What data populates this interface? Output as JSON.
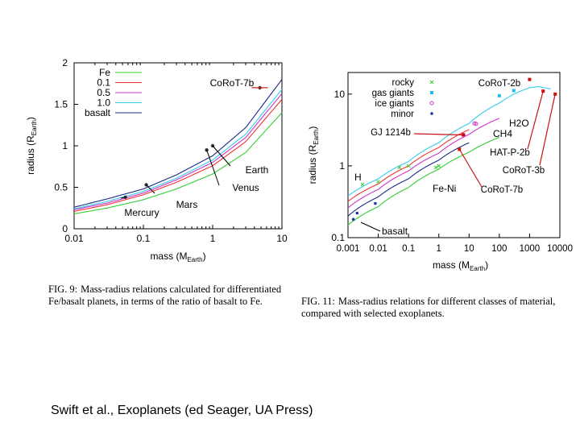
{
  "charts": [
    {
      "id": "fig9",
      "type": "line",
      "xscale": "log",
      "yscale": "linear",
      "xlim": [
        0.01,
        10
      ],
      "ylim": [
        0,
        2
      ],
      "xticks": [
        "0.01",
        "0.1",
        "1",
        "10"
      ],
      "yticks": [
        "0",
        "0.5",
        "1",
        "1.5",
        "2"
      ],
      "xlabel": "mass (M",
      "xlabel_sub": "Earth",
      "ylabel": "radius (R",
      "ylabel_sub": "Earth",
      "legend_placement": "top-left",
      "series": [
        {
          "name": "Fe",
          "color": "#33cc33",
          "x": [
            0.01,
            0.03,
            0.1,
            0.3,
            1,
            3,
            10
          ],
          "y": [
            0.18,
            0.25,
            0.35,
            0.48,
            0.66,
            0.92,
            1.4
          ]
        },
        {
          "name": "0.1",
          "color": "#ee3333",
          "x": [
            0.01,
            0.03,
            0.1,
            0.3,
            1,
            3,
            10
          ],
          "y": [
            0.21,
            0.29,
            0.41,
            0.56,
            0.76,
            1.05,
            1.56
          ]
        },
        {
          "name": "0.5",
          "color": "#cc33cc",
          "x": [
            0.01,
            0.03,
            0.1,
            0.3,
            1,
            3,
            10
          ],
          "y": [
            0.23,
            0.31,
            0.43,
            0.59,
            0.8,
            1.1,
            1.63
          ]
        },
        {
          "name": "1.0",
          "color": "#33ccee",
          "x": [
            0.01,
            0.03,
            0.1,
            0.3,
            1,
            3,
            10
          ],
          "y": [
            0.24,
            0.33,
            0.45,
            0.61,
            0.83,
            1.14,
            1.68
          ]
        },
        {
          "name": "basalt",
          "color": "#1a2a8a",
          "x": [
            0.01,
            0.03,
            0.1,
            0.3,
            1,
            3,
            10
          ],
          "y": [
            0.26,
            0.36,
            0.48,
            0.65,
            0.88,
            1.22,
            1.8
          ]
        }
      ],
      "planets": [
        {
          "name": "Mercury",
          "x": 0.055,
          "y": 0.38
        },
        {
          "name": "Mars",
          "x": 0.11,
          "y": 0.53
        },
        {
          "name": "Venus",
          "x": 0.82,
          "y": 0.95
        },
        {
          "name": "Earth",
          "x": 1.0,
          "y": 1.0
        },
        {
          "name": "CoRoT-7b",
          "x": 4.8,
          "y": 1.7
        }
      ]
    },
    {
      "id": "fig11",
      "type": "scatter",
      "xscale": "log",
      "yscale": "log",
      "xlim": [
        0.001,
        10000
      ],
      "ylim": [
        0.1,
        20
      ],
      "xticks": [
        "0.001",
        "0.01",
        "0.1",
        "1",
        "10",
        "100",
        "1000",
        "10000"
      ],
      "yticks": [
        "0.1",
        "1",
        "10"
      ],
      "xlabel": "mass (M",
      "xlabel_sub": "Earth",
      "ylabel": "radius (R",
      "ylabel_sub": "Earth",
      "legend_placement": "top-left",
      "legend": [
        {
          "name": "rocky",
          "color": "#33cc33",
          "marker": "x"
        },
        {
          "name": "gas giants",
          "color": "#22bbee",
          "marker": "square"
        },
        {
          "name": "ice giants",
          "color": "#cc33cc",
          "marker": "circle"
        },
        {
          "name": "minor",
          "color": "#2233aa",
          "marker": "dot"
        }
      ],
      "curves": [
        {
          "name": "CH4",
          "color": "#33ccee",
          "x": [
            0.001,
            0.01,
            0.1,
            1,
            10,
            100,
            300,
            1000,
            2000,
            5000
          ],
          "y": [
            0.38,
            0.66,
            1.15,
            2.1,
            3.9,
            7.5,
            10,
            12.3,
            12.7,
            11.8
          ]
        },
        {
          "name": "H2O",
          "color": "#cc33cc",
          "x": [
            0.001,
            0.01,
            0.1,
            1,
            10,
            100
          ],
          "y": [
            0.26,
            0.47,
            0.85,
            1.5,
            2.75,
            4.6
          ]
        },
        {
          "name": "basalt",
          "color": "#1a2a8a",
          "x": [
            0.001,
            0.01,
            0.1,
            1,
            10
          ],
          "y": [
            0.2,
            0.37,
            0.66,
            1.2,
            2.1
          ]
        },
        {
          "name": "Fe-Ni",
          "color": "#33cc33",
          "x": [
            0.001,
            0.01,
            0.1,
            1,
            10,
            100
          ],
          "y": [
            0.15,
            0.27,
            0.5,
            0.9,
            1.55,
            2.5
          ]
        },
        {
          "name": "H",
          "color": "#ee3333",
          "x": [
            0.001,
            0.01,
            0.1,
            1,
            10
          ],
          "y": [
            0.32,
            0.56,
            1.0,
            1.8,
            3.2
          ]
        }
      ],
      "points": [
        {
          "cls": "rocky",
          "x": 0.003,
          "y": 0.55
        },
        {
          "cls": "rocky",
          "x": 0.01,
          "y": 0.6
        },
        {
          "cls": "rocky",
          "x": 0.05,
          "y": 0.95
        },
        {
          "cls": "rocky",
          "x": 0.1,
          "y": 1.0
        },
        {
          "cls": "rocky",
          "x": 0.8,
          "y": 0.95
        },
        {
          "cls": "rocky",
          "x": 1.0,
          "y": 1.0
        },
        {
          "cls": "gas",
          "x": 100,
          "y": 9.5
        },
        {
          "cls": "gas",
          "x": 300,
          "y": 11.2
        },
        {
          "cls": "ice",
          "x": 15,
          "y": 3.9
        },
        {
          "cls": "ice",
          "x": 17,
          "y": 3.85
        },
        {
          "cls": "ice",
          "x": 6.5,
          "y": 2.7
        },
        {
          "cls": "minor",
          "x": 0.0015,
          "y": 0.18
        },
        {
          "cls": "minor",
          "x": 0.002,
          "y": 0.22
        },
        {
          "cls": "minor",
          "x": 0.008,
          "y": 0.3
        }
      ],
      "exoplanets": [
        {
          "name": "CoRoT-2b",
          "x": 1000,
          "y": 16
        },
        {
          "name": "GJ 1214b",
          "x": 6.5,
          "y": 2.7
        },
        {
          "name": "HAT-P-2b",
          "x": 2800,
          "y": 11
        },
        {
          "name": "CoRoT-3b",
          "x": 7000,
          "y": 10
        },
        {
          "name": "CoRoT-7b",
          "x": 4.8,
          "y": 1.7
        }
      ],
      "curve_labels": [
        "CH4",
        "H2O",
        "H",
        "Fe-Ni",
        "basalt"
      ]
    }
  ],
  "captions": {
    "fig9_label": "FIG. 9:",
    "fig9_text": "Mass-radius relations calculated for differentiated Fe/basalt planets, in terms of the ratio of basalt to Fe.",
    "fig11_label": "FIG. 11:",
    "fig11_text": "Mass-radius relations for different classes of material, compared with selected exoplanets."
  },
  "credit": "Swift et al., Exoplanets (ed Seager, UA Press)"
}
